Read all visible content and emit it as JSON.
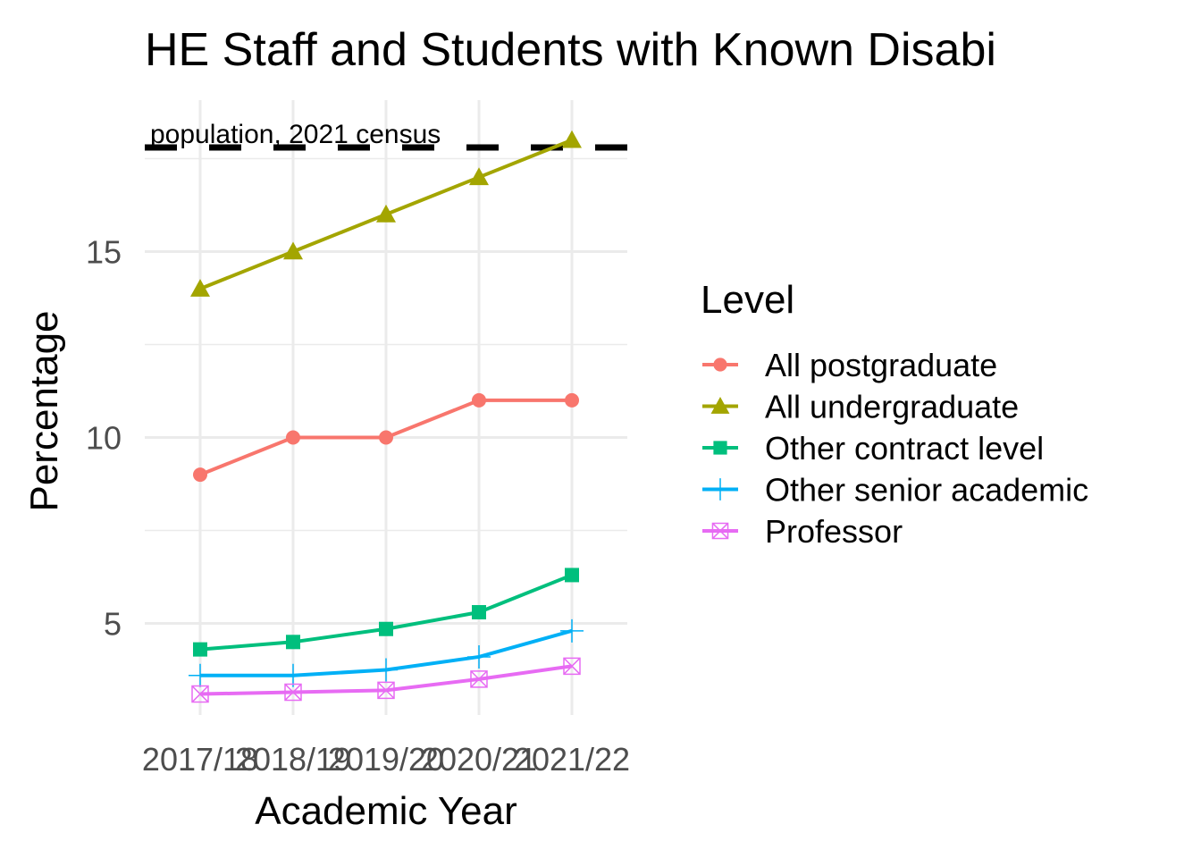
{
  "chart_data": {
    "type": "line",
    "title": "HE Staff and Students with Known Disabi",
    "xlabel": "Academic Year",
    "ylabel": "Percentage",
    "categories": [
      "2017/18",
      "2018/19",
      "2019/20",
      "2020/21",
      "2021/22"
    ],
    "y_ticks": [
      5,
      10,
      15
    ],
    "ylim": [
      2.6,
      18.8
    ],
    "grid": true,
    "legend": {
      "title": "Level",
      "position": "right"
    },
    "series": [
      {
        "name": "All postgraduate",
        "color": "#F8766D",
        "marker": "circle",
        "values": [
          9,
          10,
          10,
          11,
          11
        ]
      },
      {
        "name": "All undergraduate",
        "color": "#A3A500",
        "marker": "triangle",
        "values": [
          14,
          15,
          16,
          17,
          18
        ]
      },
      {
        "name": "Other contract level",
        "color": "#00BF7D",
        "marker": "square",
        "values": [
          4.3,
          4.5,
          4.85,
          5.3,
          6.3
        ]
      },
      {
        "name": "Other senior academic",
        "color": "#00B0F6",
        "marker": "plus",
        "values": [
          3.6,
          3.6,
          3.75,
          4.1,
          4.8
        ]
      },
      {
        "name": "Professor",
        "color": "#E76BF3",
        "marker": "square-x",
        "values": [
          3.1,
          3.15,
          3.2,
          3.5,
          3.85
        ]
      }
    ],
    "reference_line": {
      "label": "population, 2021 census",
      "value": 17.8,
      "style": "dashed",
      "color": "#000000"
    }
  }
}
